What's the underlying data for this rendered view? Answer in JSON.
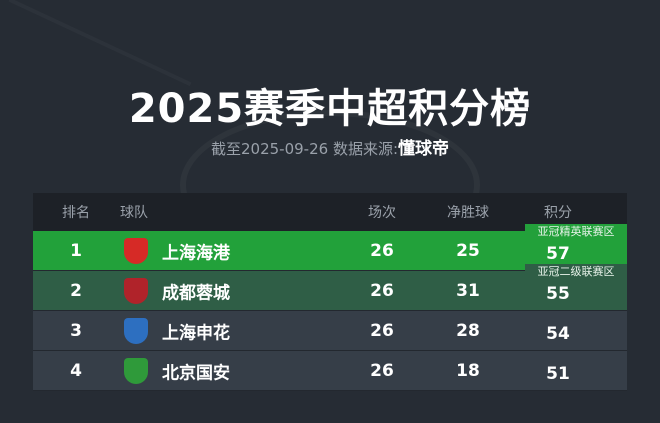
{
  "title": "2025赛季中超积分榜",
  "subtitle": {
    "prefix": "截至2025-09-26 数据来源:",
    "source": "懂球帝"
  },
  "columns": [
    "排名",
    "球队",
    "场次",
    "净胜球",
    "积分"
  ],
  "badges": {
    "acl_elite": "亚冠精英联赛区",
    "acl_two": "亚冠二级联赛区"
  },
  "rows": [
    {
      "rank": "1",
      "team": "上海海港",
      "played": "26",
      "gd": "25",
      "pts": "57",
      "bg": "#22a13a",
      "logo": "#d62a26"
    },
    {
      "rank": "2",
      "team": "成都蓉城",
      "played": "26",
      "gd": "31",
      "pts": "55",
      "bg": "#2f5e46",
      "logo": "#b0232a"
    },
    {
      "rank": "3",
      "team": "上海申花",
      "played": "26",
      "gd": "28",
      "pts": "54",
      "bg": "#363e48",
      "logo": "#2d6fc0"
    },
    {
      "rank": "4",
      "team": "北京国安",
      "played": "26",
      "gd": "18",
      "pts": "51",
      "bg": "#363e48",
      "logo": "#2f9a3a"
    }
  ]
}
